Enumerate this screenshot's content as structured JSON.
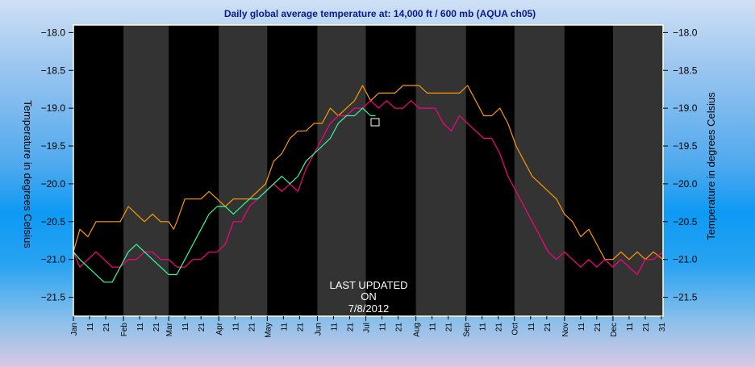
{
  "chart_data": {
    "type": "line",
    "title": "Daily global average temperature at: 14,000 ft / 600 mb (AQUA ch05)",
    "ylabel": "Temperature in degrees Celsius",
    "ylabel_right": "Temperature in degrees Celsius",
    "ylim": [
      -21.75,
      -17.9
    ],
    "yticks": [
      -18.0,
      -18.5,
      -19.0,
      -19.5,
      -20.0,
      -20.5,
      -21.0,
      -21.5
    ],
    "ytick_labels": [
      "−18.0",
      "−18.5",
      "−19.0",
      "−19.5",
      "−20.0",
      "−20.5",
      "−21.0",
      "−21.5"
    ],
    "x_unit": "day of year",
    "xlim": [
      1,
      366
    ],
    "month_labels": [
      "Jan",
      "Feb",
      "Mar",
      "Apr",
      "May",
      "Jun",
      "Jul",
      "Aug",
      "Sep",
      "Oct",
      "Nov",
      "Dec"
    ],
    "month_start_days": [
      1,
      32,
      60,
      91,
      121,
      152,
      182,
      213,
      244,
      274,
      305,
      335
    ],
    "sub_tick_labels": [
      "11",
      "21"
    ],
    "end_tick_label": "31",
    "annotation": [
      "LAST UPDATED",
      "ON",
      "7/8/2012"
    ],
    "colors": {
      "background": "#000000",
      "band": "#333333",
      "frame": "#ffffe0"
    },
    "series": [
      {
        "color": "#ff9900",
        "x": [
          1,
          5,
          10,
          15,
          20,
          25,
          30,
          35,
          40,
          45,
          50,
          55,
          60,
          63,
          65,
          70,
          75,
          80,
          85,
          90,
          95,
          100,
          105,
          110,
          115,
          120,
          125,
          130,
          135,
          140,
          145,
          150,
          155,
          160,
          165,
          170,
          175,
          180,
          185,
          190,
          195,
          200,
          205,
          210,
          215,
          220,
          225,
          230,
          235,
          240,
          245,
          250,
          255,
          260,
          265,
          270,
          275,
          280,
          285,
          290,
          295,
          300,
          305,
          310,
          315,
          320,
          325,
          330,
          335,
          340,
          345,
          350,
          355,
          360,
          366
        ],
        "values": [
          -20.9,
          -20.6,
          -20.7,
          -20.5,
          -20.5,
          -20.5,
          -20.5,
          -20.3,
          -20.4,
          -20.5,
          -20.4,
          -20.5,
          -20.5,
          -20.6,
          -20.5,
          -20.2,
          -20.2,
          -20.2,
          -20.1,
          -20.2,
          -20.3,
          -20.2,
          -20.2,
          -20.2,
          -20.1,
          -20.0,
          -19.7,
          -19.6,
          -19.4,
          -19.3,
          -19.3,
          -19.2,
          -19.2,
          -19.0,
          -19.1,
          -19.0,
          -18.9,
          -18.7,
          -18.9,
          -18.8,
          -18.8,
          -18.8,
          -18.7,
          -18.7,
          -18.7,
          -18.8,
          -18.8,
          -18.8,
          -18.8,
          -18.8,
          -18.7,
          -18.9,
          -19.1,
          -19.1,
          -19.0,
          -19.2,
          -19.5,
          -19.7,
          -19.9,
          -20.0,
          -20.1,
          -20.2,
          -20.4,
          -20.5,
          -20.7,
          -20.6,
          -20.8,
          -21.0,
          -21.0,
          -20.9,
          -21.0,
          -20.9,
          -21.0,
          -20.9,
          -21.0
        ]
      },
      {
        "color": "#ff0080",
        "x": [
          1,
          5,
          10,
          15,
          20,
          25,
          30,
          35,
          40,
          45,
          50,
          55,
          60,
          65,
          70,
          75,
          80,
          85,
          90,
          95,
          100,
          105,
          110,
          115,
          120,
          125,
          130,
          135,
          140,
          145,
          150,
          155,
          160,
          165,
          170,
          175,
          180,
          185,
          190,
          195,
          200,
          205,
          210,
          215,
          220,
          225,
          230,
          235,
          240,
          245,
          250,
          255,
          260,
          265,
          270,
          275,
          280,
          285,
          290,
          295,
          300,
          305,
          310,
          315,
          320,
          325,
          330,
          335,
          340,
          345,
          350,
          355,
          360,
          366
        ],
        "values": [
          -20.9,
          -21.1,
          -21.0,
          -20.9,
          -21.0,
          -21.1,
          -21.1,
          -21.0,
          -21.0,
          -20.9,
          -20.9,
          -21.0,
          -21.0,
          -21.1,
          -21.1,
          -21.0,
          -21.0,
          -20.9,
          -20.9,
          -20.8,
          -20.5,
          -20.5,
          -20.3,
          -20.2,
          -20.1,
          -20.0,
          -20.1,
          -20.0,
          -20.1,
          -19.8,
          -19.6,
          -19.4,
          -19.2,
          -19.1,
          -19.1,
          -19.0,
          -19.0,
          -18.9,
          -19.0,
          -18.9,
          -19.0,
          -19.0,
          -18.9,
          -19.0,
          -19.0,
          -19.0,
          -19.2,
          -19.3,
          -19.1,
          -19.2,
          -19.3,
          -19.4,
          -19.4,
          -19.6,
          -19.9,
          -20.1,
          -20.3,
          -20.5,
          -20.7,
          -20.9,
          -21.0,
          -20.9,
          -21.0,
          -21.1,
          -21.0,
          -21.1,
          -21.0,
          -21.1,
          -21.0,
          -21.1,
          -21.2,
          -21.0,
          -21.0,
          -20.9
        ]
      },
      {
        "color": "#33ff99",
        "x": [
          1,
          5,
          10,
          15,
          20,
          25,
          30,
          35,
          40,
          45,
          50,
          55,
          60,
          65,
          70,
          75,
          80,
          85,
          90,
          95,
          100,
          105,
          110,
          115,
          120,
          125,
          130,
          135,
          140,
          145,
          150,
          155,
          160,
          165,
          170,
          175,
          180,
          185,
          188
        ],
        "values": [
          -20.9,
          -21.0,
          -21.1,
          -21.2,
          -21.3,
          -21.3,
          -21.1,
          -20.9,
          -20.8,
          -20.9,
          -21.0,
          -21.1,
          -21.2,
          -21.2,
          -21.0,
          -20.8,
          -20.6,
          -20.4,
          -20.3,
          -20.3,
          -20.4,
          -20.3,
          -20.2,
          -20.2,
          -20.1,
          -20.0,
          -19.9,
          -20.0,
          -19.9,
          -19.7,
          -19.6,
          -19.5,
          -19.4,
          -19.2,
          -19.1,
          -19.1,
          -19.0,
          -19.1,
          -19.1
        ]
      }
    ]
  }
}
